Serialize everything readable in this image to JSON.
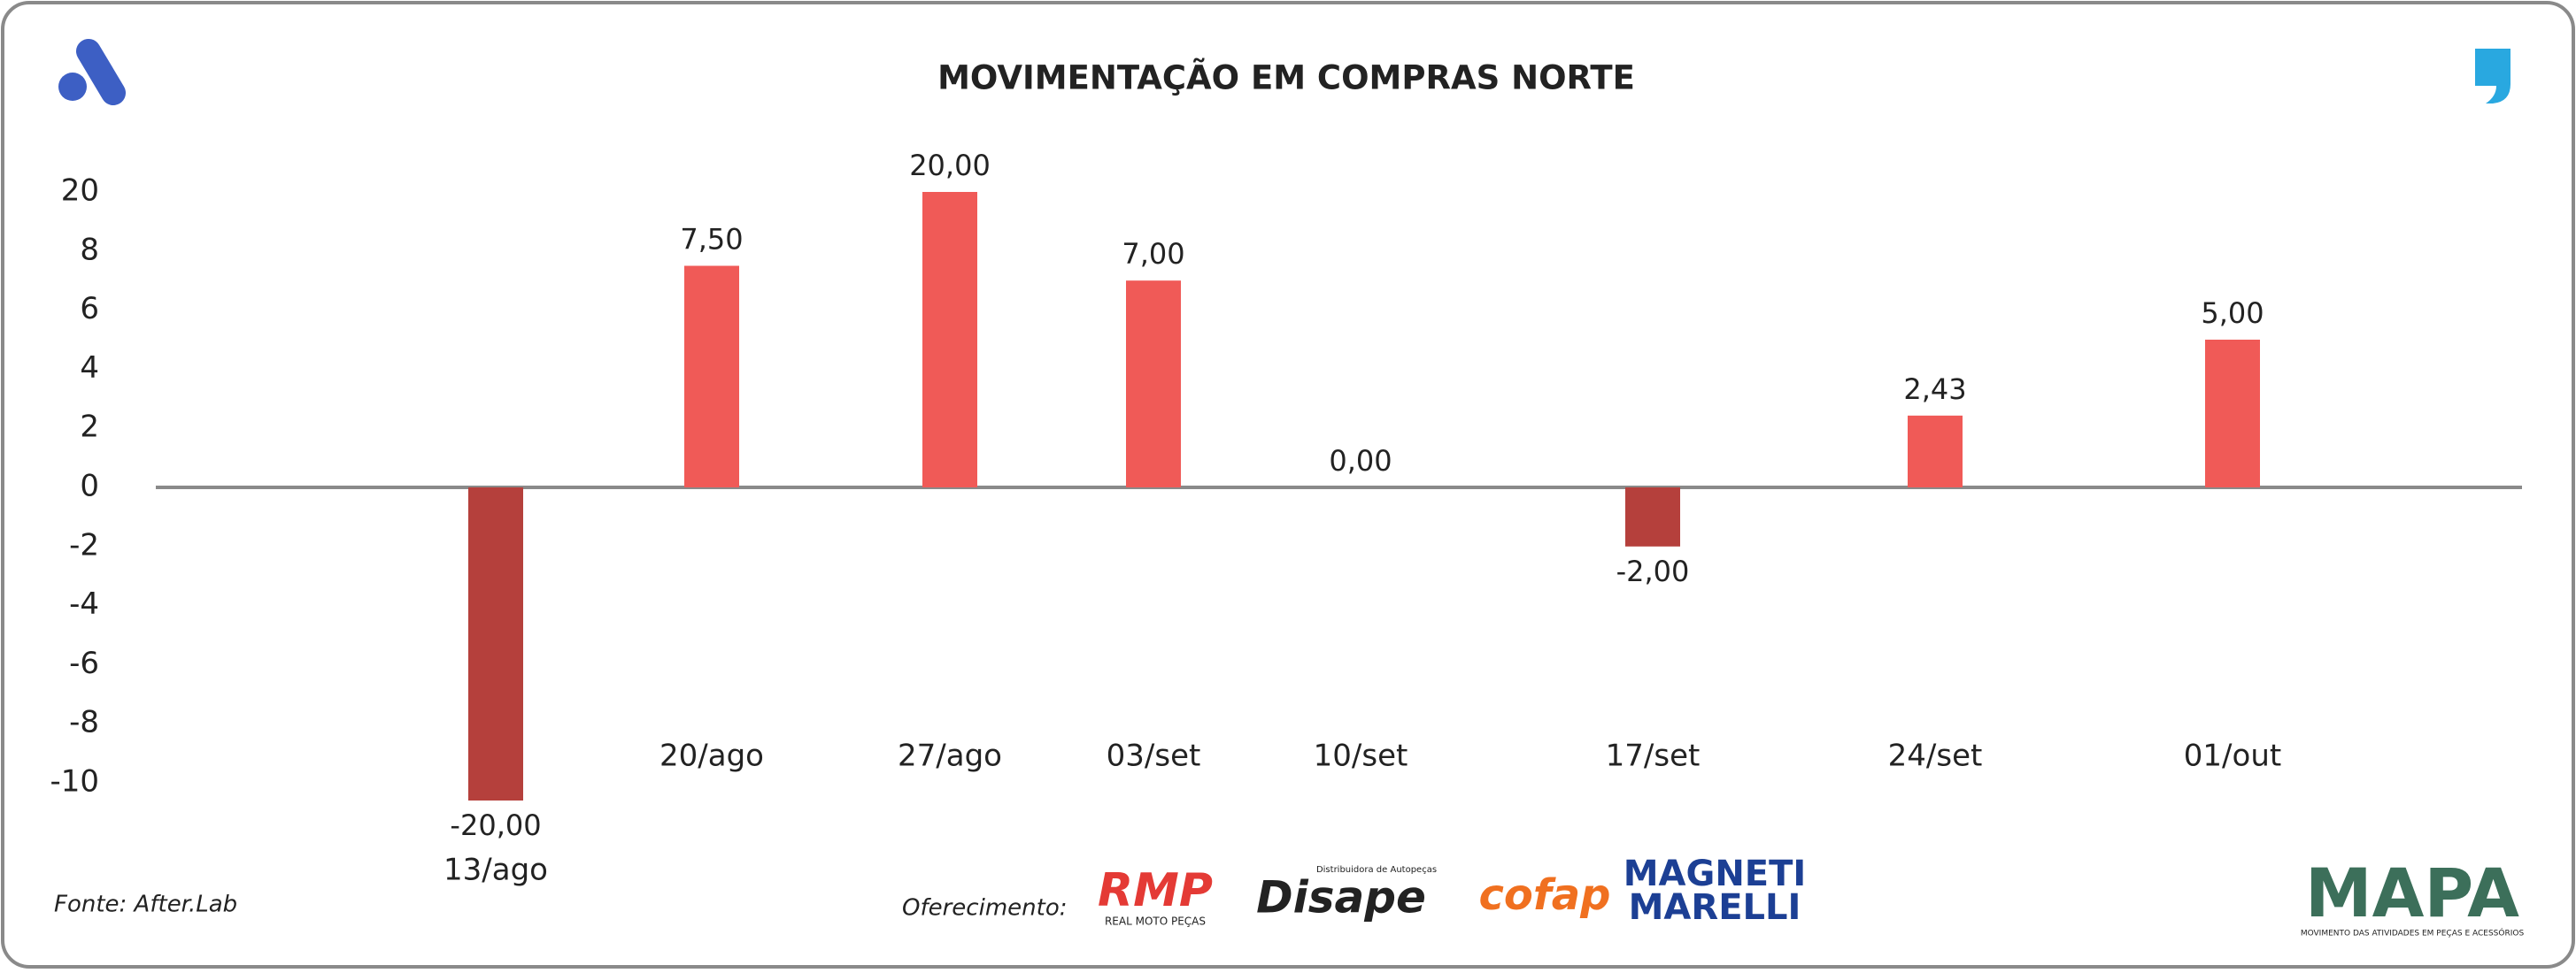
{
  "chart_data": {
    "type": "bar",
    "title": "MOVIMENTAÇÃO EM COMPRAS NORTE",
    "categories": [
      "13/ago",
      "20/ago",
      "27/ago",
      "03/set",
      "10/set",
      "17/set",
      "24/set",
      "01/out"
    ],
    "values": [
      -20,
      7.5,
      20,
      7,
      0,
      -2,
      2.43,
      5
    ],
    "value_labels": [
      "-20,00",
      "7,50",
      "20,00",
      "7,00",
      "0,00",
      "-2,00",
      "2,43",
      "5,00"
    ],
    "color": "#f05a57",
    "negative_color": "#b5403c",
    "ylim": [
      -20,
      20
    ],
    "yticks": [
      -10,
      -8,
      -6,
      -4,
      -2,
      0,
      2,
      4,
      6,
      8,
      20
    ]
  },
  "footer": {
    "source": "Fonte: After.Lab",
    "sponsor_label": "Oferecimento:",
    "sponsors": [
      {
        "name": "RMP",
        "tagline": "REAL MOTO PEÇAS"
      },
      {
        "name": "Disape",
        "tagline": "Distribuidora de Autopeças"
      },
      {
        "name": "cofap"
      },
      {
        "name": "MAGNETI",
        "tagline": "MARELLI"
      }
    ],
    "brand": "MAPA",
    "brand_tagline": "MOVIMENTO DAS ATIVIDADES EM PEÇAS E ACESSÓRIOS"
  }
}
